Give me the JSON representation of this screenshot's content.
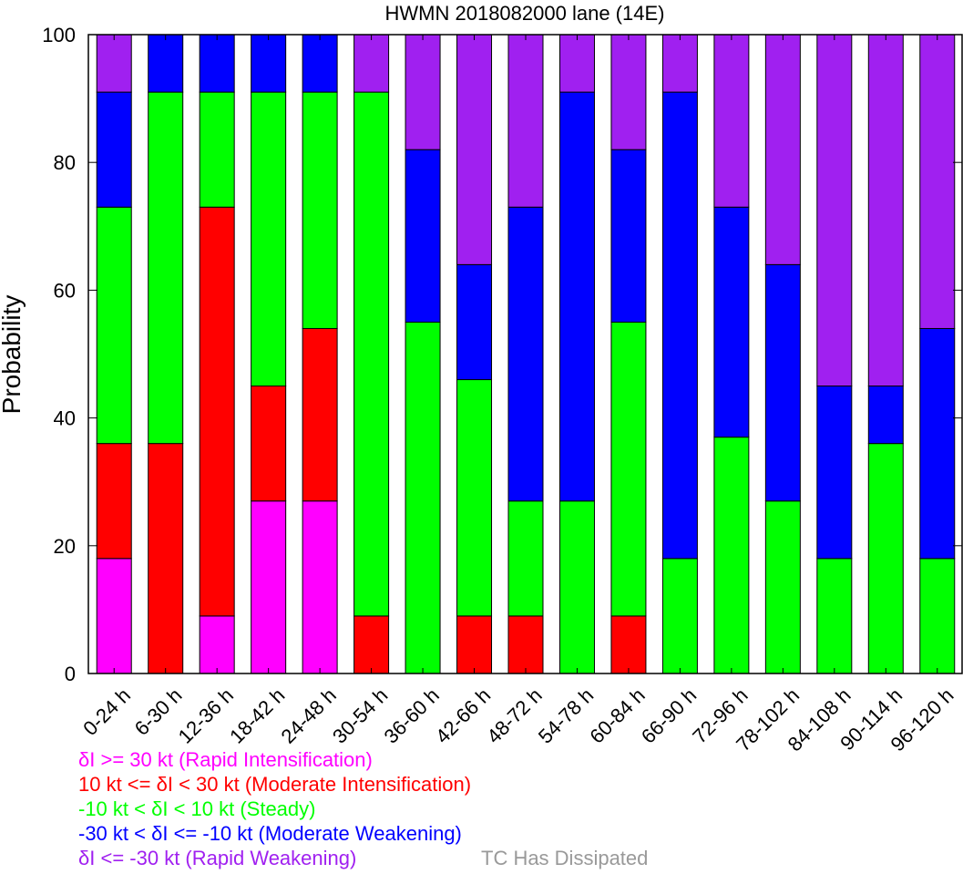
{
  "chart_data": {
    "type": "bar",
    "stacked": true,
    "title": "HWMN 2018082000 lane (14E)",
    "xlabel": "",
    "ylabel": "Probability",
    "ylim": [
      0,
      100
    ],
    "yticks": [
      0,
      20,
      40,
      60,
      80,
      100
    ],
    "grid": false,
    "categories": [
      "0-24 h",
      "6-30 h",
      "12-36 h",
      "18-42 h",
      "24-48 h",
      "30-54 h",
      "36-60 h",
      "42-66 h",
      "48-72 h",
      "54-78 h",
      "60-84 h",
      "66-90 h",
      "72-96 h",
      "78-102 h",
      "84-108 h",
      "90-114 h",
      "96-120 h"
    ],
    "series": [
      {
        "name": "δI >= 30 kt (Rapid Intensification)",
        "color": "#ff00ff",
        "values": [
          18,
          0,
          9,
          27,
          27,
          0,
          0,
          0,
          0,
          0,
          0,
          0,
          0,
          0,
          0,
          0,
          0
        ]
      },
      {
        "name": "10 kt <= δI < 30 kt (Moderate Intensification)",
        "color": "#ff0000",
        "values": [
          18,
          36,
          64,
          18,
          27,
          9,
          0,
          9,
          9,
          0,
          9,
          0,
          0,
          0,
          0,
          0,
          0
        ]
      },
      {
        "name": "-10 kt < δI < 10 kt (Steady)",
        "color": "#00ff00",
        "values": [
          37,
          55,
          18,
          46,
          37,
          82,
          55,
          37,
          18,
          27,
          46,
          18,
          37,
          27,
          18,
          36,
          18
        ]
      },
      {
        "name": "-30 kt < δI <= -10 kt (Moderate Weakening)",
        "color": "#0000ff",
        "values": [
          18,
          9,
          9,
          9,
          9,
          0,
          27,
          18,
          46,
          64,
          27,
          73,
          36,
          37,
          27,
          9,
          36
        ]
      },
      {
        "name": "δI <= -30 kt (Rapid Weakening)",
        "color": "#a020f0",
        "values": [
          9,
          0,
          0,
          0,
          0,
          9,
          18,
          36,
          27,
          9,
          18,
          9,
          27,
          36,
          55,
          55,
          46
        ]
      }
    ],
    "extra_legend": {
      "label": "TC Has Dissipated",
      "color": "#999999"
    }
  }
}
